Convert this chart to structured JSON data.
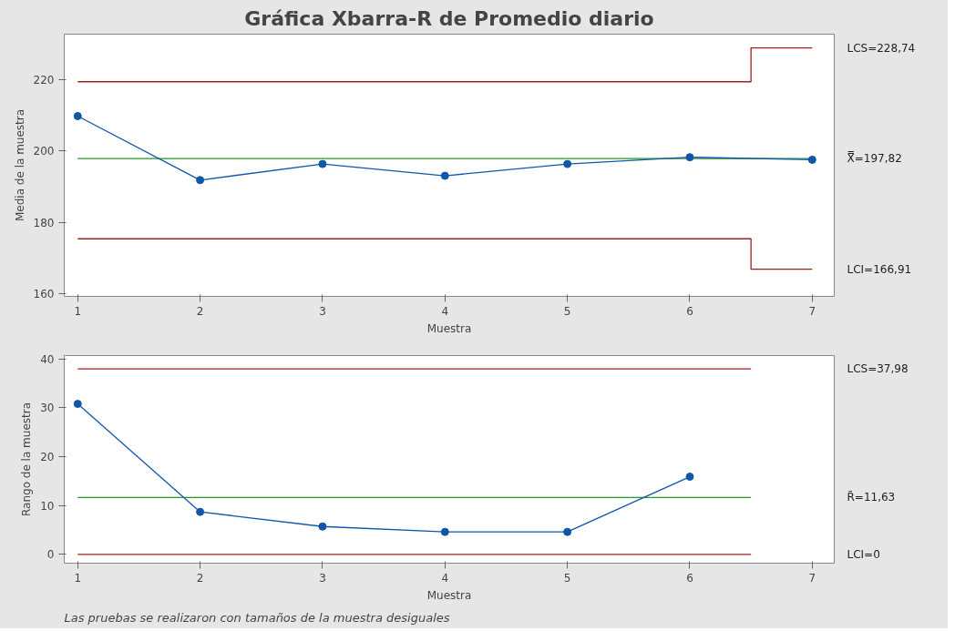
{
  "chart_data": [
    {
      "type": "line",
      "title": "Gráfica Xbarra-R de Promedio diario",
      "xlabel": "Muestra",
      "ylabel": "Media de la muestra",
      "xlim": [
        0.89,
        7.18
      ],
      "xticks": [
        1,
        2,
        3,
        4,
        5,
        6,
        7
      ],
      "ylim": [
        159.3,
        232.6
      ],
      "yticks": [
        160,
        180,
        200,
        220
      ],
      "grid": false,
      "legend": false,
      "line_style": "solid",
      "series": [
        {
          "name": "LCS=228,74",
          "color": "#a02020",
          "marker": "none",
          "x": [
            1,
            6.5,
            6.5,
            7
          ],
          "values": [
            219.3,
            219.3,
            228.74,
            228.74
          ]
        },
        {
          "name": "X̿=197,82",
          "color": "#1f9a1f",
          "marker": "none",
          "x": [
            1,
            7
          ],
          "values": [
            197.82,
            197.82
          ]
        },
        {
          "name": "LCI=166,91",
          "color": "#a02020",
          "marker": "none",
          "x": [
            1,
            6.5,
            6.5,
            7
          ],
          "values": [
            175.4,
            175.4,
            166.91,
            166.91
          ]
        },
        {
          "color": "#1057a8",
          "marker": "circle",
          "x": [
            1,
            2,
            3,
            4,
            5,
            6,
            7
          ],
          "values": [
            209.7,
            191.8,
            196.3,
            193.0,
            196.3,
            198.2,
            197.5
          ]
        }
      ]
    },
    {
      "type": "line",
      "xlabel": "Muestra",
      "ylabel": "Rango de la muestra",
      "xlim": [
        0.89,
        7.18
      ],
      "xticks": [
        1,
        2,
        3,
        4,
        5,
        6,
        7
      ],
      "ylim": [
        -1.8,
        40.7
      ],
      "yticks": [
        0,
        10,
        20,
        30,
        40
      ],
      "grid": false,
      "legend": false,
      "line_style": "solid",
      "annotations": [
        "Las pruebas se realizaron con tamaños de la muestra desiguales"
      ],
      "series": [
        {
          "name": "LCS=37,98",
          "color": "#a02020",
          "marker": "none",
          "x": [
            1,
            6.5
          ],
          "values": [
            37.98,
            37.98
          ]
        },
        {
          "name": "R̄=11,63",
          "color": "#1f9a1f",
          "marker": "none",
          "x": [
            1,
            6.5
          ],
          "values": [
            11.63,
            11.63
          ]
        },
        {
          "name": "LCI=0",
          "color": "#a02020",
          "marker": "none",
          "x": [
            1,
            6.5
          ],
          "values": [
            0,
            0
          ]
        },
        {
          "color": "#1057a8",
          "marker": "circle",
          "x": [
            1,
            2,
            3,
            4,
            5,
            6
          ],
          "values": [
            30.8,
            8.7,
            5.7,
            4.6,
            4.6,
            15.9
          ]
        }
      ]
    }
  ]
}
